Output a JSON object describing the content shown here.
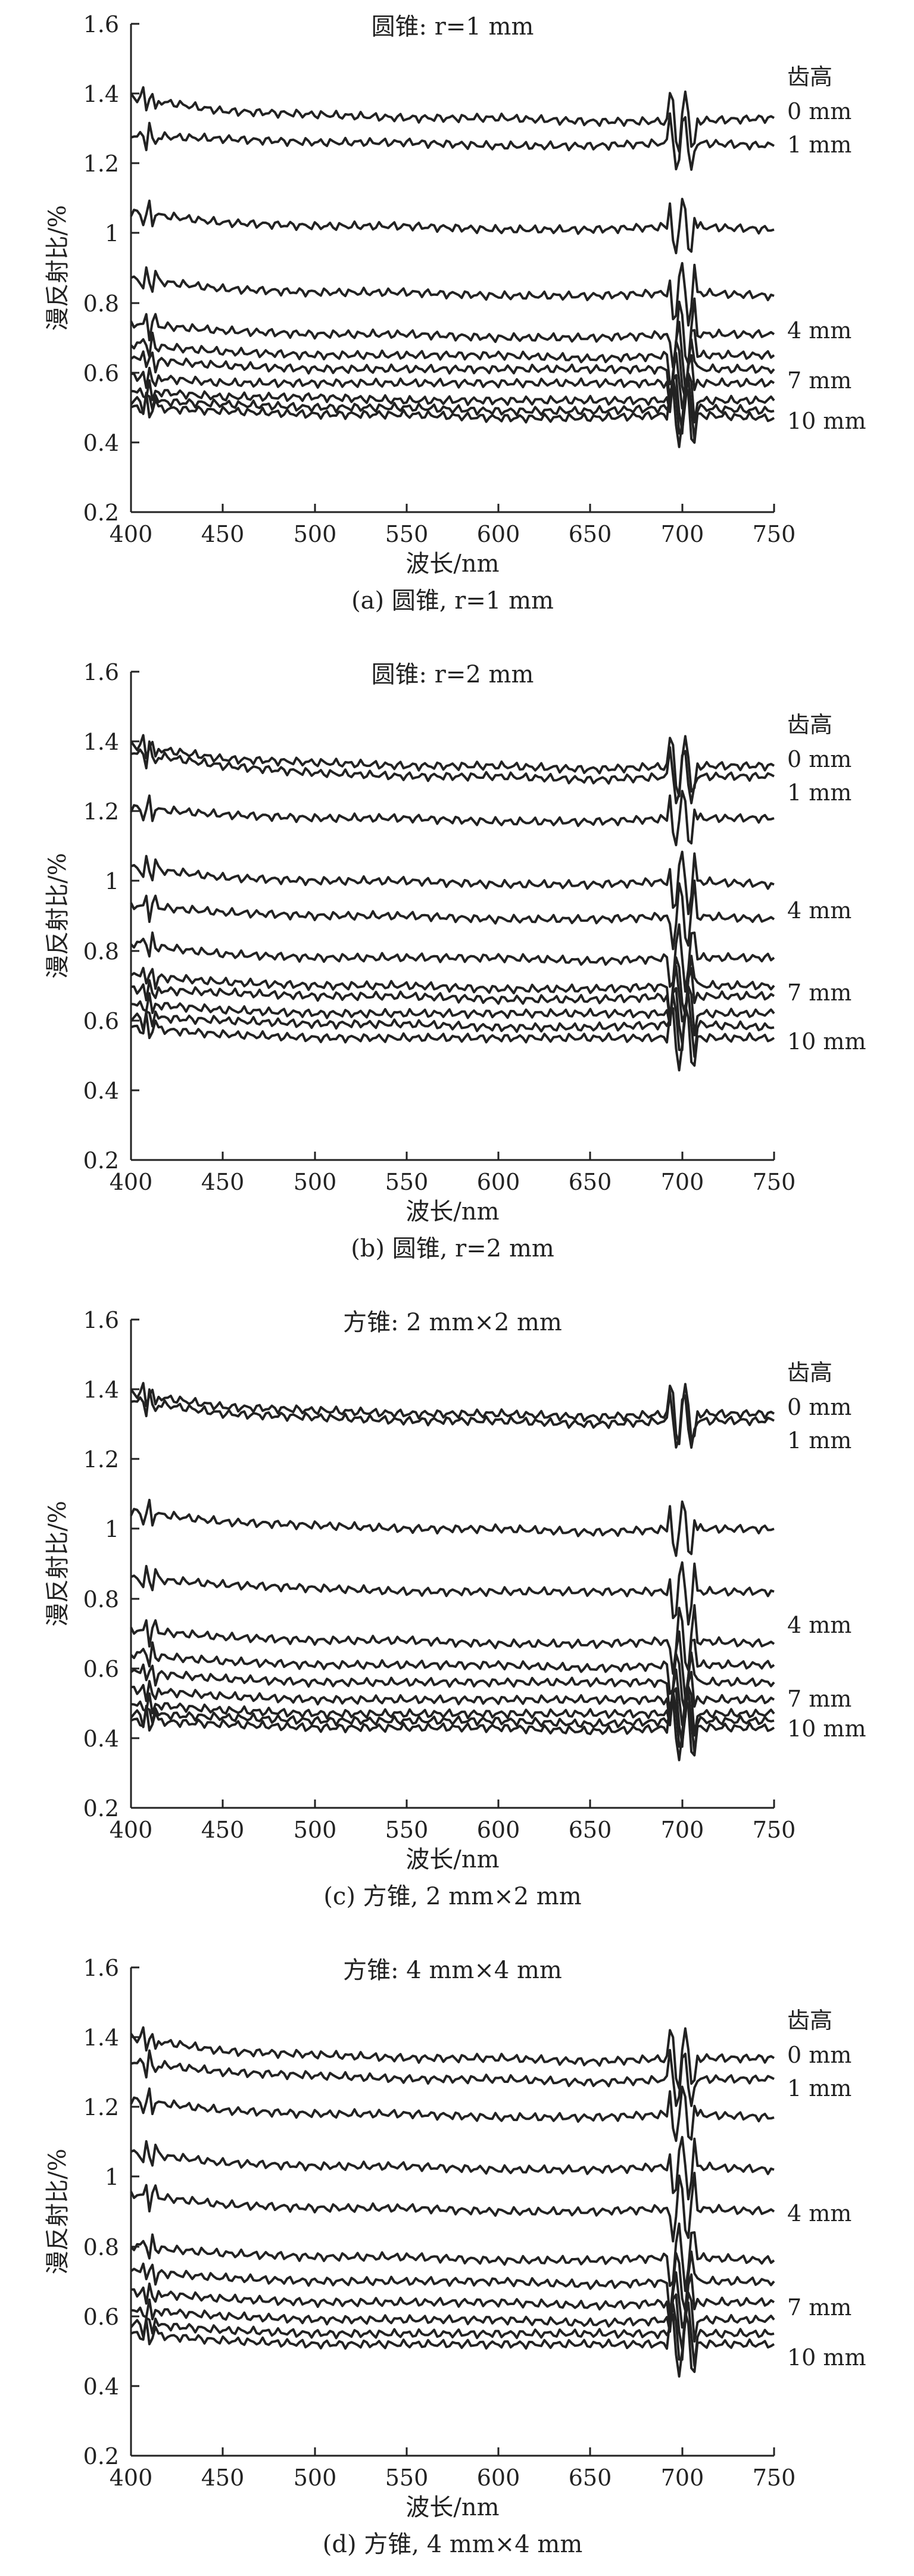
{
  "chart_data": [
    {
      "type": "line",
      "title": "圆锥: r=1 mm",
      "caption": "(a) 圆锥, r=1 mm",
      "xlabel": "波长/nm",
      "ylabel": "漫反射比/%",
      "xlim": [
        400,
        750
      ],
      "ylim": [
        0.2,
        1.6
      ],
      "xticks": [
        400,
        450,
        500,
        550,
        600,
        650,
        700,
        750
      ],
      "yticks": [
        0.2,
        0.4,
        0.6,
        0.8,
        1.0,
        1.2,
        1.4,
        1.6
      ],
      "x": [
        400,
        450,
        500,
        550,
        600,
        650,
        700,
        750
      ],
      "legend_title": "齿高",
      "legend_position": "right",
      "series": [
        {
          "name": "0 mm",
          "values": [
            1.39,
            1.35,
            1.34,
            1.33,
            1.33,
            1.32,
            1.32,
            1.33
          ]
        },
        {
          "name": "1 mm",
          "values": [
            1.28,
            1.27,
            1.26,
            1.26,
            1.25,
            1.25,
            1.26,
            1.25
          ]
        },
        {
          "values": [
            1.06,
            1.03,
            1.02,
            1.02,
            1.01,
            1.01,
            1.02,
            1.01
          ]
        },
        {
          "values": [
            0.87,
            0.84,
            0.83,
            0.83,
            0.82,
            0.82,
            0.83,
            0.82
          ]
        },
        {
          "name": "4 mm",
          "values": [
            0.74,
            0.72,
            0.71,
            0.71,
            0.7,
            0.7,
            0.71,
            0.71
          ]
        },
        {
          "values": [
            0.68,
            0.66,
            0.65,
            0.65,
            0.65,
            0.64,
            0.65,
            0.65
          ]
        },
        {
          "values": [
            0.64,
            0.62,
            0.61,
            0.61,
            0.61,
            0.61,
            0.61,
            0.61
          ]
        },
        {
          "name": "7 mm",
          "values": [
            0.59,
            0.57,
            0.57,
            0.57,
            0.57,
            0.57,
            0.57,
            0.57
          ]
        },
        {
          "values": [
            0.55,
            0.53,
            0.53,
            0.52,
            0.52,
            0.52,
            0.52,
            0.52
          ]
        },
        {
          "values": [
            0.52,
            0.51,
            0.5,
            0.5,
            0.49,
            0.49,
            0.5,
            0.49
          ]
        },
        {
          "name": "10 mm",
          "values": [
            0.5,
            0.49,
            0.48,
            0.48,
            0.47,
            0.47,
            0.48,
            0.47
          ]
        }
      ]
    },
    {
      "type": "line",
      "title": "圆锥: r=2 mm",
      "caption": "(b) 圆锥, r=2 mm",
      "xlabel": "波长/nm",
      "ylabel": "漫反射比/%",
      "xlim": [
        400,
        750
      ],
      "ylim": [
        0.2,
        1.6
      ],
      "xticks": [
        400,
        450,
        500,
        550,
        600,
        650,
        700,
        750
      ],
      "yticks": [
        0.2,
        0.4,
        0.6,
        0.8,
        1.0,
        1.2,
        1.4,
        1.6
      ],
      "x": [
        400,
        450,
        500,
        550,
        600,
        650,
        700,
        750
      ],
      "legend_title": "齿高",
      "legend_position": "right",
      "series": [
        {
          "name": "0 mm",
          "values": [
            1.39,
            1.35,
            1.34,
            1.33,
            1.33,
            1.32,
            1.33,
            1.33
          ]
        },
        {
          "values": [
            1.37,
            1.33,
            1.31,
            1.3,
            1.3,
            1.29,
            1.3,
            1.3
          ]
        },
        {
          "name": "1 mm",
          "values": [
            1.21,
            1.19,
            1.18,
            1.18,
            1.17,
            1.17,
            1.18,
            1.18
          ]
        },
        {
          "values": [
            1.04,
            1.01,
            1.0,
            1.0,
            0.99,
            0.99,
            1.0,
            0.99
          ]
        },
        {
          "name": "4 mm",
          "values": [
            0.93,
            0.91,
            0.9,
            0.9,
            0.89,
            0.89,
            0.9,
            0.89
          ]
        },
        {
          "values": [
            0.82,
            0.79,
            0.78,
            0.78,
            0.78,
            0.77,
            0.78,
            0.78
          ]
        },
        {
          "values": [
            0.73,
            0.71,
            0.7,
            0.7,
            0.69,
            0.69,
            0.7,
            0.7
          ]
        },
        {
          "name": "7 mm",
          "values": [
            0.69,
            0.68,
            0.67,
            0.67,
            0.66,
            0.66,
            0.67,
            0.67
          ]
        },
        {
          "values": [
            0.65,
            0.63,
            0.62,
            0.62,
            0.62,
            0.62,
            0.62,
            0.62
          ]
        },
        {
          "values": [
            0.61,
            0.6,
            0.59,
            0.59,
            0.58,
            0.58,
            0.59,
            0.58
          ]
        },
        {
          "name": "10 mm",
          "values": [
            0.58,
            0.56,
            0.55,
            0.55,
            0.55,
            0.55,
            0.55,
            0.55
          ]
        }
      ]
    },
    {
      "type": "line",
      "title": "方锥: 2 mm×2 mm",
      "caption": "(c) 方锥, 2 mm×2 mm",
      "xlabel": "波长/nm",
      "ylabel": "漫反射比/%",
      "xlim": [
        400,
        750
      ],
      "ylim": [
        0.2,
        1.6
      ],
      "xticks": [
        400,
        450,
        500,
        550,
        600,
        650,
        700,
        750
      ],
      "yticks": [
        0.2,
        0.4,
        0.6,
        0.8,
        1.0,
        1.2,
        1.4,
        1.6
      ],
      "x": [
        400,
        450,
        500,
        550,
        600,
        650,
        700,
        750
      ],
      "legend_title": "齿高",
      "legend_position": "right",
      "series": [
        {
          "name": "0 mm",
          "values": [
            1.39,
            1.35,
            1.34,
            1.33,
            1.33,
            1.32,
            1.33,
            1.33
          ]
        },
        {
          "name": "1 mm",
          "values": [
            1.37,
            1.33,
            1.32,
            1.31,
            1.31,
            1.3,
            1.31,
            1.31
          ]
        },
        {
          "values": [
            1.05,
            1.02,
            1.01,
            1.0,
            1.0,
            0.99,
            1.0,
            1.0
          ]
        },
        {
          "values": [
            0.86,
            0.84,
            0.83,
            0.82,
            0.82,
            0.82,
            0.82,
            0.82
          ]
        },
        {
          "name": "4 mm",
          "values": [
            0.71,
            0.69,
            0.68,
            0.68,
            0.67,
            0.67,
            0.68,
            0.67
          ]
        },
        {
          "values": [
            0.64,
            0.62,
            0.61,
            0.61,
            0.61,
            0.6,
            0.61,
            0.61
          ]
        },
        {
          "values": [
            0.59,
            0.57,
            0.56,
            0.56,
            0.56,
            0.56,
            0.56,
            0.56
          ]
        },
        {
          "name": "7 mm",
          "values": [
            0.54,
            0.52,
            0.51,
            0.51,
            0.51,
            0.51,
            0.51,
            0.51
          ]
        },
        {
          "values": [
            0.5,
            0.48,
            0.47,
            0.47,
            0.47,
            0.47,
            0.47,
            0.47
          ]
        },
        {
          "values": [
            0.47,
            0.46,
            0.45,
            0.45,
            0.45,
            0.44,
            0.45,
            0.45
          ]
        },
        {
          "name": "10 mm",
          "values": [
            0.45,
            0.44,
            0.43,
            0.43,
            0.43,
            0.42,
            0.43,
            0.43
          ]
        }
      ]
    },
    {
      "type": "line",
      "title": "方锥: 4 mm×4 mm",
      "caption": "(d) 方锥, 4 mm×4 mm",
      "xlabel": "波长/nm",
      "ylabel": "漫反射比/%",
      "xlim": [
        400,
        750
      ],
      "ylim": [
        0.2,
        1.6
      ],
      "xticks": [
        400,
        450,
        500,
        550,
        600,
        650,
        700,
        750
      ],
      "yticks": [
        0.2,
        0.4,
        0.6,
        0.8,
        1.0,
        1.2,
        1.4,
        1.6
      ],
      "x": [
        400,
        450,
        500,
        550,
        600,
        650,
        700,
        750
      ],
      "legend_title": "齿高",
      "legend_position": "right",
      "series": [
        {
          "name": "0 mm",
          "values": [
            1.4,
            1.36,
            1.35,
            1.34,
            1.34,
            1.33,
            1.34,
            1.34
          ]
        },
        {
          "name": "1 mm",
          "values": [
            1.33,
            1.3,
            1.29,
            1.28,
            1.28,
            1.27,
            1.28,
            1.28
          ]
        },
        {
          "values": [
            1.22,
            1.19,
            1.18,
            1.18,
            1.17,
            1.17,
            1.18,
            1.17
          ]
        },
        {
          "values": [
            1.07,
            1.04,
            1.03,
            1.03,
            1.02,
            1.02,
            1.03,
            1.02
          ]
        },
        {
          "name": "4 mm",
          "values": [
            0.95,
            0.92,
            0.91,
            0.91,
            0.9,
            0.9,
            0.91,
            0.9
          ]
        },
        {
          "values": [
            0.8,
            0.78,
            0.77,
            0.77,
            0.76,
            0.76,
            0.77,
            0.76
          ]
        },
        {
          "values": [
            0.73,
            0.71,
            0.7,
            0.7,
            0.7,
            0.69,
            0.7,
            0.7
          ]
        },
        {
          "name": "7 mm",
          "values": [
            0.67,
            0.65,
            0.64,
            0.64,
            0.64,
            0.63,
            0.64,
            0.64
          ]
        },
        {
          "values": [
            0.62,
            0.6,
            0.59,
            0.59,
            0.59,
            0.58,
            0.59,
            0.59
          ]
        },
        {
          "values": [
            0.58,
            0.56,
            0.55,
            0.55,
            0.55,
            0.55,
            0.55,
            0.55
          ]
        },
        {
          "name": "10 mm",
          "values": [
            0.55,
            0.53,
            0.52,
            0.52,
            0.52,
            0.52,
            0.52,
            0.52
          ]
        }
      ]
    }
  ],
  "colors": {
    "line": "#222222",
    "axis": "#222222",
    "background": "#ffffff"
  }
}
